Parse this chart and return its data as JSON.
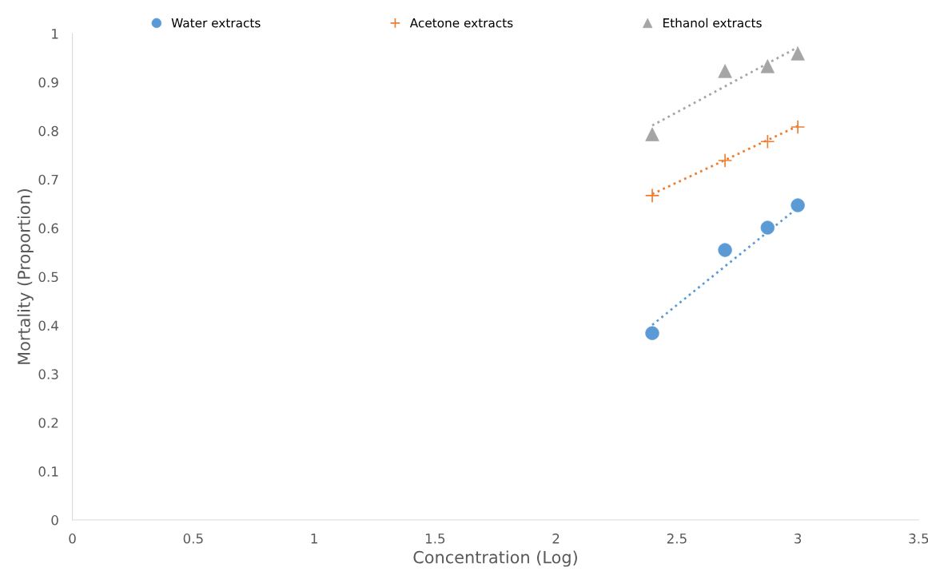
{
  "chart_data": {
    "type": "scatter",
    "xlabel": "Concentration (Log)",
    "ylabel": "Mortality (Proportion)",
    "xlim": [
      0,
      3.5
    ],
    "xticks": [
      0,
      0.5,
      1,
      1.5,
      2,
      2.5,
      3,
      3.5
    ],
    "ylim": [
      0,
      1
    ],
    "yticks": [
      0,
      0.1,
      0.2,
      0.3,
      0.4,
      0.5,
      0.6,
      0.7,
      0.8,
      0.9,
      1
    ],
    "grid": false,
    "legend": "top",
    "series": [
      {
        "name": "Water extracts",
        "color": "#5b9bd5",
        "marker": "circle",
        "x": [
          2.398,
          2.699,
          2.875,
          3.0
        ],
        "values": [
          0.384,
          0.555,
          0.601,
          0.647
        ]
      },
      {
        "name": "Acetone extracts",
        "color": "#ed7d31",
        "marker": "cross",
        "x": [
          2.398,
          2.699,
          2.875,
          3.0
        ],
        "values": [
          0.667,
          0.739,
          0.778,
          0.808
        ]
      },
      {
        "name": "Ethanol extracts",
        "color": "#a5a5a5",
        "marker": "triangle",
        "x": [
          2.398,
          2.699,
          2.875,
          3.0
        ],
        "values": [
          0.793,
          0.923,
          0.933,
          0.959
        ]
      },
      {
        "type": "line",
        "line_style": "dotted",
        "color": "#5b9bd5",
        "x": [
          2.398,
          3.0
        ],
        "values": [
          0.401,
          0.642
        ]
      },
      {
        "type": "line",
        "line_style": "dotted",
        "color": "#ed7d31",
        "x": [
          2.398,
          3.0
        ],
        "values": [
          0.67,
          0.81
        ]
      },
      {
        "type": "line",
        "line_style": "dotted",
        "color": "#a5a5a5",
        "x": [
          2.398,
          3.0
        ],
        "values": [
          0.811,
          0.972
        ]
      }
    ]
  }
}
